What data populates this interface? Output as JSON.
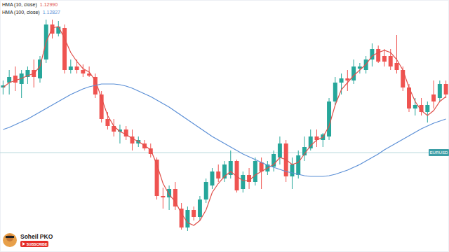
{
  "chart_data": {
    "type": "candlestick",
    "categories": [
      null,
      null,
      null,
      null,
      null,
      null,
      null,
      null,
      null,
      null,
      null,
      null,
      null,
      null,
      null,
      null,
      null,
      null,
      null,
      null,
      null,
      null,
      null,
      null,
      null,
      null,
      null,
      null,
      null,
      null,
      null,
      null,
      null,
      null,
      null,
      null,
      null,
      null,
      null,
      null,
      null,
      null,
      null,
      null,
      null,
      null,
      null,
      null,
      null,
      null,
      null,
      null,
      null,
      null,
      null,
      null,
      null,
      null,
      null,
      null,
      null,
      null,
      null,
      null,
      null,
      null,
      null,
      null,
      null,
      null,
      null,
      null,
      null
    ],
    "series": [
      {
        "type": "candlestick",
        "open": [
          1.13225,
          1.1326,
          1.1331,
          1.1325,
          1.133,
          1.1335,
          1.1329,
          1.13425,
          1.13675,
          1.1361,
          1.1365,
          1.1335,
          1.13375,
          1.1335,
          1.13325,
          1.133,
          1.13175,
          1.13,
          1.1295,
          1.1291,
          1.12925,
          1.12875,
          1.12825,
          1.12825,
          1.1279,
          1.1271,
          1.1245,
          1.1244,
          1.125,
          1.1236,
          1.12225,
          1.1235,
          1.123,
          1.12425,
          1.12525,
          1.12625,
          1.12575,
          1.126,
          1.127,
          1.125,
          1.126,
          1.1255,
          1.1269,
          1.12625,
          1.1266,
          1.12725,
          1.12825,
          1.1259,
          1.126,
          1.1274,
          1.1279,
          1.12875,
          1.1285,
          1.12875,
          1.13125,
          1.1326,
          1.1329,
          1.13275,
          1.1336,
          1.1335,
          1.13425,
          1.135,
          1.1345,
          1.1345,
          1.134,
          1.1335,
          1.13225,
          1.13075,
          1.131,
          1.1305,
          1.13175,
          1.1315,
          1.1325
        ],
        "high": [
          1.13275,
          1.1335,
          1.13375,
          1.1335,
          1.13375,
          1.13425,
          1.1345,
          1.1371,
          1.1371,
          1.137,
          1.13675,
          1.13425,
          1.13425,
          1.1339,
          1.13375,
          1.13325,
          1.132,
          1.1305,
          1.13,
          1.1296,
          1.1295,
          1.12925,
          1.12875,
          1.1285,
          1.12825,
          1.12725,
          1.1251,
          1.12525,
          1.1255,
          1.124,
          1.12375,
          1.12375,
          1.1245,
          1.12575,
          1.1265,
          1.12675,
          1.127,
          1.12775,
          1.1271,
          1.12625,
          1.1265,
          1.12725,
          1.12725,
          1.127,
          1.12775,
          1.12875,
          1.1285,
          1.12725,
          1.12775,
          1.12875,
          1.12925,
          1.12925,
          1.129,
          1.1315,
          1.133,
          1.13325,
          1.1335,
          1.13425,
          1.134,
          1.1345,
          1.1354,
          1.13525,
          1.135,
          1.135,
          1.136,
          1.13375,
          1.1325,
          1.1315,
          1.1315,
          1.13125,
          1.13275,
          1.13275,
          1.13275
        ],
        "low": [
          1.13175,
          1.13175,
          1.132,
          1.1315,
          1.1325,
          1.13225,
          1.1326,
          1.134,
          1.13575,
          1.1359,
          1.13325,
          1.13325,
          1.13325,
          1.133,
          1.133,
          1.1315,
          1.12975,
          1.12925,
          1.12875,
          1.12825,
          1.1285,
          1.12775,
          1.128,
          1.12775,
          1.12725,
          1.12425,
          1.1236,
          1.1235,
          1.1235,
          1.1221,
          1.122,
          1.12275,
          1.12275,
          1.124,
          1.125,
          1.1255,
          1.1255,
          1.12575,
          1.12475,
          1.12475,
          1.125,
          1.12525,
          1.125,
          1.126,
          1.12625,
          1.12675,
          1.1255,
          1.125,
          1.12575,
          1.127,
          1.12775,
          1.128,
          1.128,
          1.1285,
          1.131,
          1.13175,
          1.132,
          1.1325,
          1.13325,
          1.13325,
          1.13375,
          1.134,
          1.13375,
          1.1335,
          1.13325,
          1.132,
          1.1305,
          1.13025,
          1.13025,
          1.12975,
          1.13075,
          1.13125,
          1.1315
        ],
        "close": [
          1.1324,
          1.133,
          1.1326,
          1.13325,
          1.1335,
          1.133,
          1.13425,
          1.13675,
          1.1361,
          1.1366,
          1.1335,
          1.13375,
          1.1335,
          1.13325,
          1.1331,
          1.13175,
          1.13,
          1.1295,
          1.1291,
          1.12925,
          1.12875,
          1.12825,
          1.1285,
          1.1279,
          1.1275,
          1.1245,
          1.1244,
          1.125,
          1.12375,
          1.12225,
          1.1235,
          1.123,
          1.12425,
          1.1255,
          1.12625,
          1.12575,
          1.12675,
          1.127,
          1.1249,
          1.126,
          1.1255,
          1.127,
          1.12625,
          1.12675,
          1.1275,
          1.12825,
          1.1259,
          1.12675,
          1.1274,
          1.128,
          1.12875,
          1.1285,
          1.1289,
          1.13125,
          1.1326,
          1.1329,
          1.13275,
          1.13375,
          1.13375,
          1.13425,
          1.135,
          1.1341,
          1.1341,
          1.13375,
          1.1335,
          1.13225,
          1.13075,
          1.131,
          1.1305,
          1.131,
          1.13125,
          1.1325,
          1.13175
        ]
      },
      {
        "type": "line",
        "name": "HMA (10, close)",
        "color": "#e0504b",
        "legend_value": {
          "value": 1.1299,
          "label": "1.12990"
        },
        "values": [
          1.13225,
          1.1326,
          1.13275,
          1.1329,
          1.1331,
          1.13325,
          1.13375,
          1.1355,
          1.1365,
          1.1366,
          1.13575,
          1.13475,
          1.1341,
          1.1336,
          1.13335,
          1.13275,
          1.1315,
          1.13025,
          1.1295,
          1.1291,
          1.1289,
          1.1286,
          1.1284,
          1.1281,
          1.1278,
          1.12675,
          1.1254,
          1.1246,
          1.1241,
          1.12325,
          1.1226,
          1.1224,
          1.12275,
          1.1235,
          1.12475,
          1.1254,
          1.1259,
          1.12625,
          1.1259,
          1.1256,
          1.1256,
          1.126,
          1.12625,
          1.1265,
          1.12675,
          1.12725,
          1.1271,
          1.12675,
          1.1269,
          1.1275,
          1.1281,
          1.1285,
          1.1287,
          1.1295,
          1.131,
          1.1321,
          1.1326,
          1.1331,
          1.1335,
          1.1339,
          1.1345,
          1.13475,
          1.1349,
          1.13475,
          1.13425,
          1.1335,
          1.13225,
          1.13125,
          1.1306,
          1.13025,
          1.1306,
          1.13125,
          1.1316
        ]
      },
      {
        "type": "line",
        "name": "HMA (100, close)",
        "color": "#5b8fd6",
        "legend_value": {
          "value": 1.12827,
          "label": "1.12827"
        },
        "values": [
          1.12925,
          1.1294,
          1.1296,
          1.1298,
          1.13,
          1.13025,
          1.1305,
          1.13075,
          1.131,
          1.13125,
          1.1315,
          1.13175,
          1.13195,
          1.13215,
          1.1323,
          1.1324,
          1.1325,
          1.1325,
          1.1325,
          1.13245,
          1.13235,
          1.1322,
          1.132,
          1.1318,
          1.1316,
          1.13135,
          1.1311,
          1.13085,
          1.13055,
          1.13025,
          1.12995,
          1.12965,
          1.12935,
          1.12905,
          1.12875,
          1.1285,
          1.12825,
          1.128,
          1.12775,
          1.1275,
          1.1273,
          1.1271,
          1.1269,
          1.1267,
          1.12655,
          1.1264,
          1.12625,
          1.12615,
          1.12605,
          1.12595,
          1.1259,
          1.1259,
          1.1259,
          1.12595,
          1.12605,
          1.1262,
          1.12635,
          1.12655,
          1.12675,
          1.127,
          1.12725,
          1.1275,
          1.1278,
          1.12805,
          1.1283,
          1.12855,
          1.1288,
          1.12905,
          1.1293,
          1.1295,
          1.1297,
          1.12985,
          1.13
        ]
      }
    ],
    "annotations": [
      {
        "value": 1.1276,
        "label": "EURUSD"
      }
    ],
    "ylim": [
      1.1205,
      1.1385
    ],
    "yticks": [],
    "tick_labels": false,
    "grid": false,
    "legend": "top-left"
  },
  "watermark": {
    "name": "Soheil PKO",
    "button": "SUBSCRIBE"
  }
}
